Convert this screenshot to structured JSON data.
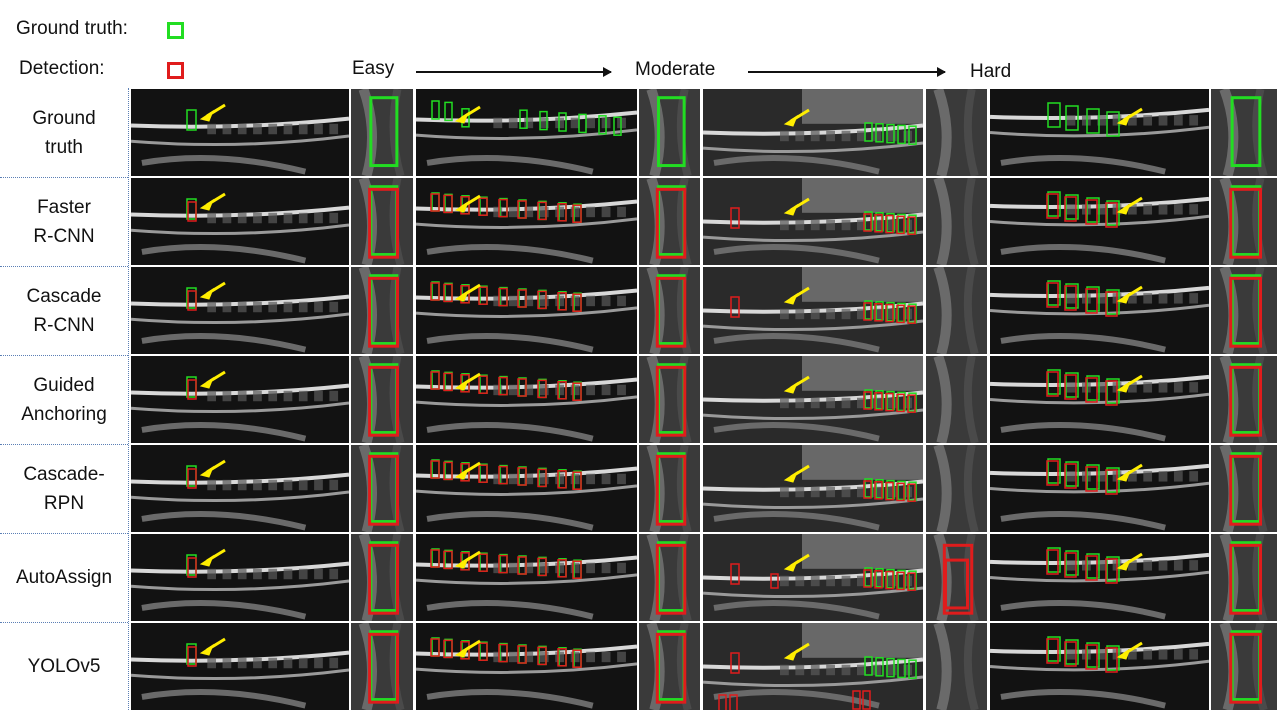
{
  "legend": {
    "ground_truth_label": "Ground truth:",
    "detection_label": "Detection:",
    "ground_truth_color": "#22dd22",
    "detection_color": "#e01c1c"
  },
  "difficulty": {
    "easy": "Easy",
    "moderate": "Moderate",
    "hard": "Hard"
  },
  "rows": [
    {
      "label": "Ground\ntruth"
    },
    {
      "label": "Faster\nR-CNN"
    },
    {
      "label": "Cascade\nR-CNN"
    },
    {
      "label": "Guided\nAnchoring"
    },
    {
      "label": "Cascade-\nRPN"
    },
    {
      "label": "AutoAssign"
    },
    {
      "label": "YOLOv5"
    }
  ],
  "colors": {
    "arrow_indicator": "#ffee00",
    "row_separator": "#5b7fb5"
  }
}
